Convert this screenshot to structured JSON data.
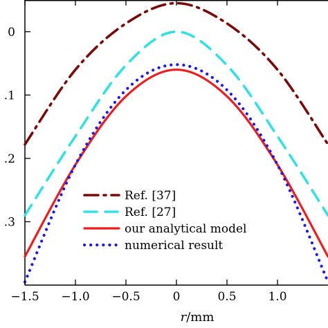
{
  "chart_data": {
    "type": "line",
    "xlabel_var": "r",
    "xlabel_unit": "/mm",
    "ylabel": "",
    "xlim": [
      -1.5,
      1.5
    ],
    "ylim": [
      -0.4,
      0.05
    ],
    "xticks": [
      -1.5,
      -1.0,
      -0.5,
      0,
      0.5,
      1.0
    ],
    "xtick_labels": [
      "−1.5",
      "−1.0",
      "−0.5",
      "0",
      "0.5",
      "1.0"
    ],
    "yticks": [
      0,
      -0.1,
      -0.2,
      -0.3
    ],
    "ytick_labels": [
      "0",
      ".1",
      ".2",
      ".3"
    ],
    "legend_position": "lower-center",
    "series": [
      {
        "name": "Ref. [37]",
        "color": "#7a0a0a",
        "style": "dashdot",
        "x": [
          -1.5,
          -1.0,
          -0.5,
          0,
          0.5,
          1.0,
          1.5
        ],
        "y": [
          -0.178,
          -0.06,
          0.013,
          0.045,
          0.013,
          -0.06,
          -0.178
        ]
      },
      {
        "name": "Ref. [27]",
        "color": "#33e0e6",
        "style": "dashed",
        "x": [
          -1.5,
          -1.0,
          -0.5,
          0,
          0.5,
          1.0,
          1.5
        ],
        "y": [
          -0.29,
          -0.165,
          -0.053,
          0.0,
          -0.053,
          -0.165,
          -0.29
        ]
      },
      {
        "name": "our analytical model",
        "color": "#ee1c1c",
        "style": "solid",
        "x": [
          -1.5,
          -1.0,
          -0.5,
          0,
          0.5,
          1.0,
          1.5
        ],
        "y": [
          -0.355,
          -0.21,
          -0.102,
          -0.06,
          -0.102,
          -0.21,
          -0.355
        ]
      },
      {
        "name": "numerical result",
        "color": "#1a1aee",
        "style": "dotted",
        "x": [
          -1.5,
          -1.0,
          -0.5,
          0,
          0.5,
          1.0,
          1.5
        ],
        "y": [
          -0.395,
          -0.21,
          -0.092,
          -0.052,
          -0.092,
          -0.21,
          -0.395
        ]
      }
    ]
  }
}
